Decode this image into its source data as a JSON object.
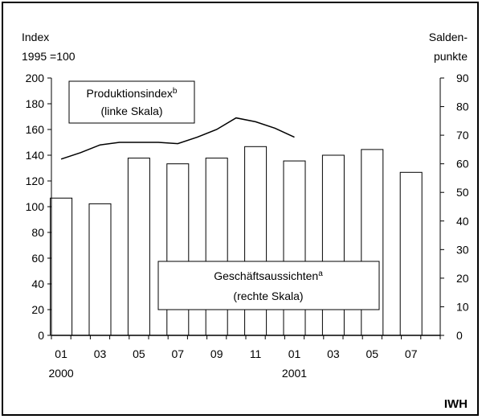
{
  "chart_data": {
    "type": "bar",
    "left_axis": {
      "title_lines": [
        "Index",
        "1995 =100"
      ],
      "ylim": [
        0,
        200
      ],
      "ticks": [
        0,
        20,
        40,
        60,
        80,
        100,
        120,
        140,
        160,
        180,
        200
      ],
      "tick_labels": [
        "0",
        "20",
        "40",
        "60",
        "80",
        "100",
        "120",
        "140",
        "160",
        "180",
        "200"
      ]
    },
    "right_axis": {
      "title_lines": [
        "Salden-",
        "punkte"
      ],
      "ylim": [
        0,
        90
      ],
      "ticks": [
        0,
        10,
        20,
        30,
        40,
        50,
        60,
        70,
        80,
        90
      ],
      "tick_labels": [
        "0",
        "10",
        "20",
        "30",
        "40",
        "50",
        "60",
        "70",
        "80",
        "90"
      ]
    },
    "x_ticks": [
      {
        "label": "01",
        "year": "2000"
      },
      {
        "label": "03",
        "year": ""
      },
      {
        "label": "05",
        "year": ""
      },
      {
        "label": "07",
        "year": ""
      },
      {
        "label": "09",
        "year": ""
      },
      {
        "label": "11",
        "year": ""
      },
      {
        "label": "01",
        "year": "2001"
      },
      {
        "label": "03",
        "year": ""
      },
      {
        "label": "05",
        "year": ""
      },
      {
        "label": "07",
        "year": ""
      }
    ],
    "series": [
      {
        "name": "Geschäftsaussichten",
        "axis": "right",
        "type": "bar",
        "values": [
          48,
          46,
          62,
          60,
          62,
          66,
          61,
          63,
          65,
          57
        ]
      },
      {
        "name": "Produktionsindex",
        "axis": "left",
        "type": "line",
        "values": [
          137,
          142,
          148,
          150,
          150,
          150,
          149,
          154,
          160,
          169,
          166,
          161,
          154
        ]
      }
    ],
    "legend": [
      {
        "series": "Produktionsindex",
        "line1": "Produktionsindex",
        "sup": "b",
        "line2": "(linke Skala)"
      },
      {
        "series": "Geschäftsaussichten",
        "line1": "Geschäftsaussichten",
        "sup": "a",
        "line2": "(rechte Skala)"
      }
    ]
  },
  "brand": "IWH"
}
